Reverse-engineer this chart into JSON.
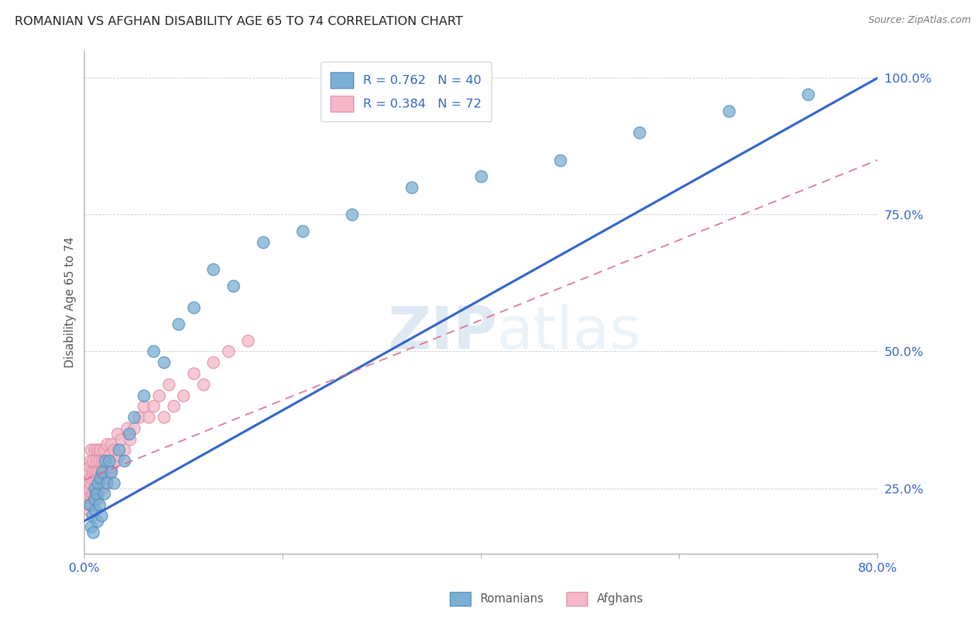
{
  "title": "ROMANIAN VS AFGHAN DISABILITY AGE 65 TO 74 CORRELATION CHART",
  "source": "Source: ZipAtlas.com",
  "ylabel": "Disability Age 65 to 74",
  "xlim": [
    0.0,
    0.8
  ],
  "ylim": [
    0.13,
    1.05
  ],
  "ytick_positions": [
    0.25,
    0.5,
    0.75,
    1.0
  ],
  "ytick_labels": [
    "25.0%",
    "50.0%",
    "75.0%",
    "100.0%"
  ],
  "xtick_positions": [
    0.0,
    0.2,
    0.4,
    0.6,
    0.8
  ],
  "xticklabels": [
    "0.0%",
    "",
    "",
    "",
    "80.0%"
  ],
  "grid_color": "#cccccc",
  "background_color": "#ffffff",
  "watermark_zip": "ZIP",
  "watermark_atlas": "atlas",
  "romanian_color": "#7bafd4",
  "romanian_edge": "#5590be",
  "afghan_color": "#f4b8c8",
  "afghan_edge": "#e090a8",
  "romanian_line_color": "#3366cc",
  "afghan_line_color": "#dd6688",
  "legend_labels": [
    "R = 0.762   N = 40",
    "R = 0.384   N = 72"
  ],
  "bottom_legend_labels": [
    "Romanians",
    "Afghans"
  ],
  "romanian_scatter_x": [
    0.005,
    0.007,
    0.008,
    0.009,
    0.01,
    0.01,
    0.011,
    0.012,
    0.013,
    0.014,
    0.015,
    0.016,
    0.017,
    0.018,
    0.02,
    0.021,
    0.023,
    0.025,
    0.027,
    0.03,
    0.035,
    0.04,
    0.045,
    0.05,
    0.06,
    0.07,
    0.08,
    0.095,
    0.11,
    0.13,
    0.15,
    0.18,
    0.22,
    0.27,
    0.33,
    0.4,
    0.48,
    0.56,
    0.65,
    0.73
  ],
  "romanian_scatter_y": [
    0.22,
    0.18,
    0.2,
    0.17,
    0.23,
    0.25,
    0.21,
    0.24,
    0.19,
    0.26,
    0.22,
    0.27,
    0.2,
    0.28,
    0.24,
    0.3,
    0.26,
    0.3,
    0.28,
    0.26,
    0.32,
    0.3,
    0.35,
    0.38,
    0.42,
    0.5,
    0.48,
    0.55,
    0.58,
    0.65,
    0.62,
    0.7,
    0.72,
    0.75,
    0.8,
    0.82,
    0.85,
    0.9,
    0.94,
    0.97
  ],
  "afghan_scatter_x": [
    0.002,
    0.003,
    0.003,
    0.004,
    0.004,
    0.005,
    0.005,
    0.005,
    0.006,
    0.006,
    0.006,
    0.007,
    0.007,
    0.007,
    0.008,
    0.008,
    0.009,
    0.009,
    0.01,
    0.01,
    0.01,
    0.011,
    0.011,
    0.012,
    0.012,
    0.013,
    0.013,
    0.013,
    0.014,
    0.014,
    0.015,
    0.015,
    0.016,
    0.016,
    0.017,
    0.018,
    0.018,
    0.019,
    0.02,
    0.02,
    0.021,
    0.022,
    0.023,
    0.023,
    0.024,
    0.025,
    0.026,
    0.027,
    0.028,
    0.03,
    0.032,
    0.033,
    0.035,
    0.037,
    0.04,
    0.043,
    0.046,
    0.05,
    0.055,
    0.06,
    0.065,
    0.07,
    0.075,
    0.08,
    0.085,
    0.09,
    0.1,
    0.11,
    0.12,
    0.13,
    0.145,
    0.165
  ],
  "afghan_scatter_y": [
    0.24,
    0.22,
    0.26,
    0.23,
    0.28,
    0.21,
    0.25,
    0.29,
    0.22,
    0.26,
    0.3,
    0.23,
    0.27,
    0.32,
    0.24,
    0.28,
    0.22,
    0.3,
    0.23,
    0.27,
    0.32,
    0.24,
    0.28,
    0.25,
    0.3,
    0.23,
    0.27,
    0.32,
    0.24,
    0.28,
    0.25,
    0.3,
    0.26,
    0.32,
    0.28,
    0.25,
    0.3,
    0.26,
    0.27,
    0.32,
    0.28,
    0.3,
    0.27,
    0.33,
    0.29,
    0.31,
    0.28,
    0.33,
    0.29,
    0.32,
    0.3,
    0.35,
    0.31,
    0.34,
    0.32,
    0.36,
    0.34,
    0.36,
    0.38,
    0.4,
    0.38,
    0.4,
    0.42,
    0.38,
    0.44,
    0.4,
    0.42,
    0.46,
    0.44,
    0.48,
    0.5,
    0.52
  ]
}
